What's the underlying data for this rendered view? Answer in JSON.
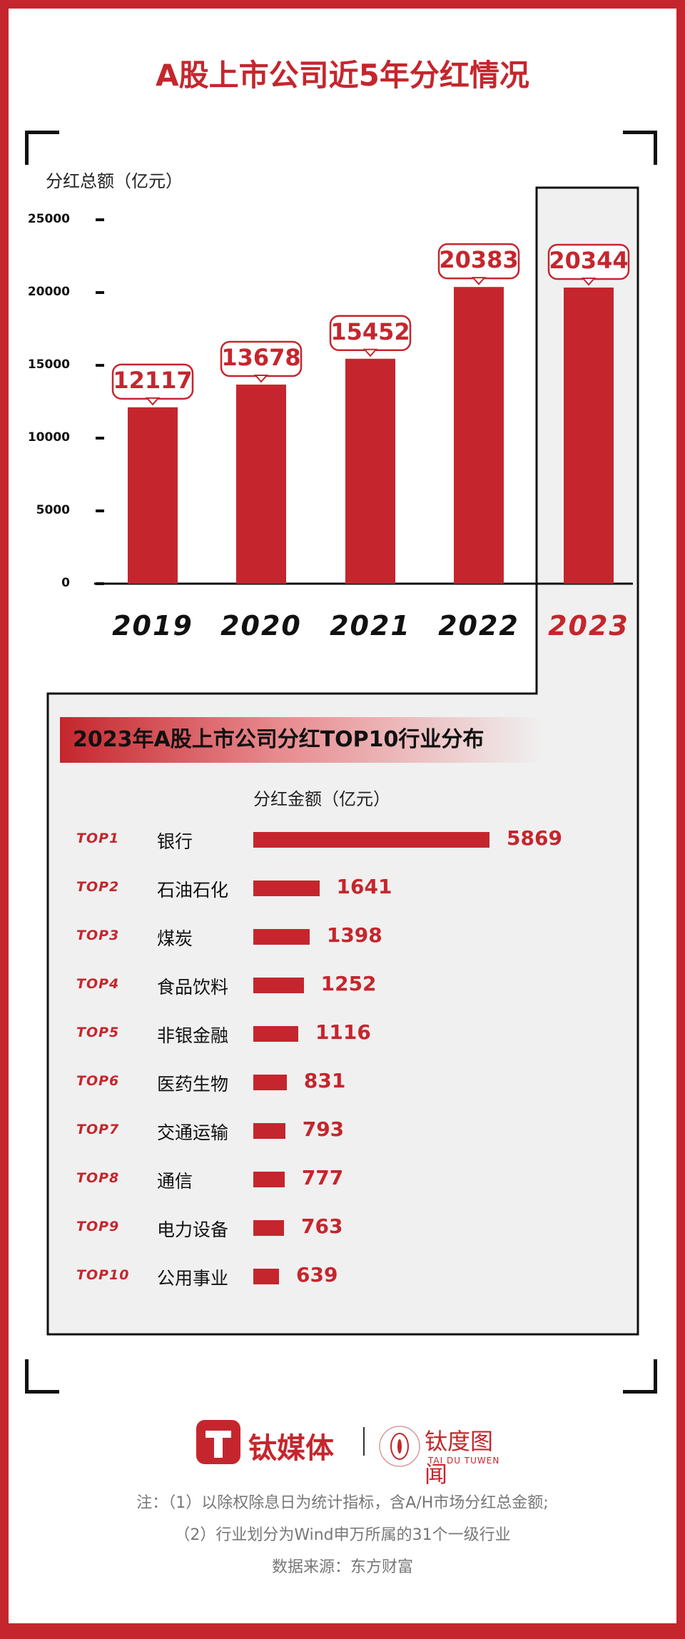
{
  "title": "A股上市公司近5年分红情况",
  "chart_data": [
    {
      "type": "bar",
      "title": "A股上市公司近5年分红情况",
      "ylabel": "分红总额（亿元）",
      "categories": [
        "2019",
        "2020",
        "2021",
        "2022",
        "2023"
      ],
      "values": [
        12117,
        13678,
        15452,
        20383,
        20344
      ],
      "ylim": [
        0,
        25000
      ],
      "yticks": [
        "0",
        "5000",
        "10000",
        "15000",
        "20000",
        "25000"
      ],
      "highlight": "2023"
    },
    {
      "type": "bar",
      "orientation": "horizontal",
      "title": "2023年A股上市公司分红TOP10行业分布",
      "xlabel": "分红金额（亿元）",
      "ranks": [
        "TOP1",
        "TOP2",
        "TOP3",
        "TOP4",
        "TOP5",
        "TOP6",
        "TOP7",
        "TOP8",
        "TOP9",
        "TOP10"
      ],
      "categories": [
        "银行",
        "石油石化",
        "煤炭",
        "食品饮料",
        "非银金融",
        "医药生物",
        "交通运输",
        "通信",
        "电力设备",
        "公用事业"
      ],
      "values": [
        5869,
        1641,
        1398,
        1252,
        1116,
        831,
        793,
        777,
        763,
        639
      ]
    }
  ],
  "logo": {
    "brand1": "钛媒体",
    "brand2": "钛度图闻",
    "brand2_sub": "TAI DU TUWEN"
  },
  "notes": [
    "注：（1）以除权除息日为统计指标，含A/H市场分红总金额;",
    "（2）行业划分为Wind申万所属的31个一级行业",
    "数据来源：东方财富"
  ],
  "colors": {
    "accent": "#c5262d",
    "panel": "#f0f0f0"
  }
}
